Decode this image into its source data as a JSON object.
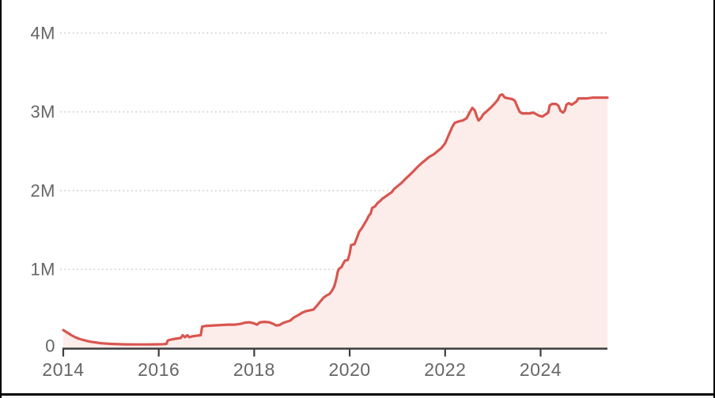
{
  "frame": {
    "background": "#ffffff",
    "border_color": "#000000"
  },
  "chart_data": {
    "type": "area",
    "title": "",
    "xlabel": "",
    "ylabel": "",
    "unit": "M",
    "x_range": [
      2014,
      2025.4
    ],
    "y_range": [
      0,
      4
    ],
    "x_ticks": [
      2014,
      2016,
      2018,
      2020,
      2022,
      2024
    ],
    "y_ticks": [
      {
        "value": 0,
        "label": "0"
      },
      {
        "value": 1,
        "label": "1M"
      },
      {
        "value": 2,
        "label": "2M"
      },
      {
        "value": 3,
        "label": "3M"
      },
      {
        "value": 4,
        "label": "4M"
      }
    ],
    "grid": "dotted-horizontal",
    "legend": "none",
    "line_color": "#d9564f",
    "fill_color": "#fcedeb",
    "axis_color": "#3d3d3d",
    "label_color": "#666666",
    "grid_color": "#cfcfcf",
    "points": [
      [
        2014.0,
        0.23
      ],
      [
        2014.08,
        0.2
      ],
      [
        2014.17,
        0.165
      ],
      [
        2014.25,
        0.14
      ],
      [
        2014.33,
        0.12
      ],
      [
        2014.42,
        0.105
      ],
      [
        2014.5,
        0.092
      ],
      [
        2014.58,
        0.082
      ],
      [
        2014.67,
        0.074
      ],
      [
        2014.75,
        0.067
      ],
      [
        2014.83,
        0.062
      ],
      [
        2014.92,
        0.058
      ],
      [
        2015.0,
        0.055
      ],
      [
        2015.17,
        0.051
      ],
      [
        2015.33,
        0.049
      ],
      [
        2015.5,
        0.048
      ],
      [
        2015.75,
        0.048
      ],
      [
        2016.0,
        0.05
      ],
      [
        2016.1,
        0.052
      ],
      [
        2016.16,
        0.055
      ],
      [
        2016.19,
        0.1
      ],
      [
        2016.3,
        0.115
      ],
      [
        2016.4,
        0.125
      ],
      [
        2016.46,
        0.13
      ],
      [
        2016.5,
        0.165
      ],
      [
        2016.55,
        0.14
      ],
      [
        2016.6,
        0.165
      ],
      [
        2016.64,
        0.14
      ],
      [
        2016.7,
        0.15
      ],
      [
        2016.78,
        0.158
      ],
      [
        2016.88,
        0.165
      ],
      [
        2016.91,
        0.275
      ],
      [
        2017.0,
        0.285
      ],
      [
        2017.15,
        0.29
      ],
      [
        2017.3,
        0.295
      ],
      [
        2017.45,
        0.3
      ],
      [
        2017.6,
        0.3
      ],
      [
        2017.72,
        0.31
      ],
      [
        2017.8,
        0.325
      ],
      [
        2017.9,
        0.33
      ],
      [
        2018.0,
        0.315
      ],
      [
        2018.06,
        0.3
      ],
      [
        2018.12,
        0.33
      ],
      [
        2018.22,
        0.335
      ],
      [
        2018.32,
        0.33
      ],
      [
        2018.4,
        0.31
      ],
      [
        2018.46,
        0.29
      ],
      [
        2018.53,
        0.295
      ],
      [
        2018.6,
        0.32
      ],
      [
        2018.67,
        0.335
      ],
      [
        2018.75,
        0.35
      ],
      [
        2018.83,
        0.39
      ],
      [
        2018.92,
        0.42
      ],
      [
        2019.0,
        0.45
      ],
      [
        2019.08,
        0.47
      ],
      [
        2019.16,
        0.48
      ],
      [
        2019.24,
        0.49
      ],
      [
        2019.3,
        0.53
      ],
      [
        2019.38,
        0.59
      ],
      [
        2019.45,
        0.64
      ],
      [
        2019.52,
        0.67
      ],
      [
        2019.58,
        0.69
      ],
      [
        2019.63,
        0.73
      ],
      [
        2019.68,
        0.79
      ],
      [
        2019.72,
        0.88
      ],
      [
        2019.75,
        0.97
      ],
      [
        2019.78,
        1.01
      ],
      [
        2019.83,
        1.03
      ],
      [
        2019.87,
        1.08
      ],
      [
        2019.9,
        1.11
      ],
      [
        2019.96,
        1.12
      ],
      [
        2020.0,
        1.2
      ],
      [
        2020.03,
        1.31
      ],
      [
        2020.1,
        1.32
      ],
      [
        2020.15,
        1.4
      ],
      [
        2020.2,
        1.48
      ],
      [
        2020.25,
        1.52
      ],
      [
        2020.3,
        1.57
      ],
      [
        2020.36,
        1.63
      ],
      [
        2020.4,
        1.68
      ],
      [
        2020.44,
        1.71
      ],
      [
        2020.47,
        1.78
      ],
      [
        2020.53,
        1.8
      ],
      [
        2020.58,
        1.84
      ],
      [
        2020.64,
        1.87
      ],
      [
        2020.69,
        1.9
      ],
      [
        2020.76,
        1.93
      ],
      [
        2020.83,
        1.96
      ],
      [
        2020.88,
        1.98
      ],
      [
        2020.93,
        2.02
      ],
      [
        2021.01,
        2.06
      ],
      [
        2021.09,
        2.1
      ],
      [
        2021.17,
        2.15
      ],
      [
        2021.26,
        2.2
      ],
      [
        2021.34,
        2.25
      ],
      [
        2021.42,
        2.3
      ],
      [
        2021.51,
        2.35
      ],
      [
        2021.59,
        2.39
      ],
      [
        2021.67,
        2.43
      ],
      [
        2021.76,
        2.46
      ],
      [
        2021.84,
        2.5
      ],
      [
        2021.92,
        2.54
      ],
      [
        2022.0,
        2.6
      ],
      [
        2022.05,
        2.67
      ],
      [
        2022.1,
        2.74
      ],
      [
        2022.15,
        2.81
      ],
      [
        2022.2,
        2.86
      ],
      [
        2022.29,
        2.88
      ],
      [
        2022.37,
        2.89
      ],
      [
        2022.45,
        2.92
      ],
      [
        2022.52,
        3.0
      ],
      [
        2022.57,
        3.05
      ],
      [
        2022.62,
        3.02
      ],
      [
        2022.67,
        2.93
      ],
      [
        2022.7,
        2.89
      ],
      [
        2022.75,
        2.92
      ],
      [
        2022.8,
        2.97
      ],
      [
        2022.86,
        3.0
      ],
      [
        2022.95,
        3.05
      ],
      [
        2023.03,
        3.1
      ],
      [
        2023.1,
        3.15
      ],
      [
        2023.15,
        3.21
      ],
      [
        2023.2,
        3.22
      ],
      [
        2023.25,
        3.18
      ],
      [
        2023.33,
        3.17
      ],
      [
        2023.41,
        3.16
      ],
      [
        2023.46,
        3.14
      ],
      [
        2023.51,
        3.07
      ],
      [
        2023.56,
        3.0
      ],
      [
        2023.61,
        2.98
      ],
      [
        2023.69,
        2.98
      ],
      [
        2023.78,
        2.98
      ],
      [
        2023.84,
        2.99
      ],
      [
        2023.91,
        2.97
      ],
      [
        2023.97,
        2.95
      ],
      [
        2024.04,
        2.94
      ],
      [
        2024.11,
        2.97
      ],
      [
        2024.16,
        2.99
      ],
      [
        2024.19,
        3.08
      ],
      [
        2024.24,
        3.1
      ],
      [
        2024.32,
        3.1
      ],
      [
        2024.37,
        3.08
      ],
      [
        2024.42,
        3.01
      ],
      [
        2024.47,
        2.99
      ],
      [
        2024.51,
        3.02
      ],
      [
        2024.54,
        3.09
      ],
      [
        2024.59,
        3.11
      ],
      [
        2024.65,
        3.09
      ],
      [
        2024.7,
        3.11
      ],
      [
        2024.75,
        3.13
      ],
      [
        2024.79,
        3.17
      ],
      [
        2024.87,
        3.17
      ],
      [
        2024.97,
        3.17
      ],
      [
        2025.1,
        3.18
      ],
      [
        2025.23,
        3.18
      ],
      [
        2025.4,
        3.18
      ]
    ]
  }
}
